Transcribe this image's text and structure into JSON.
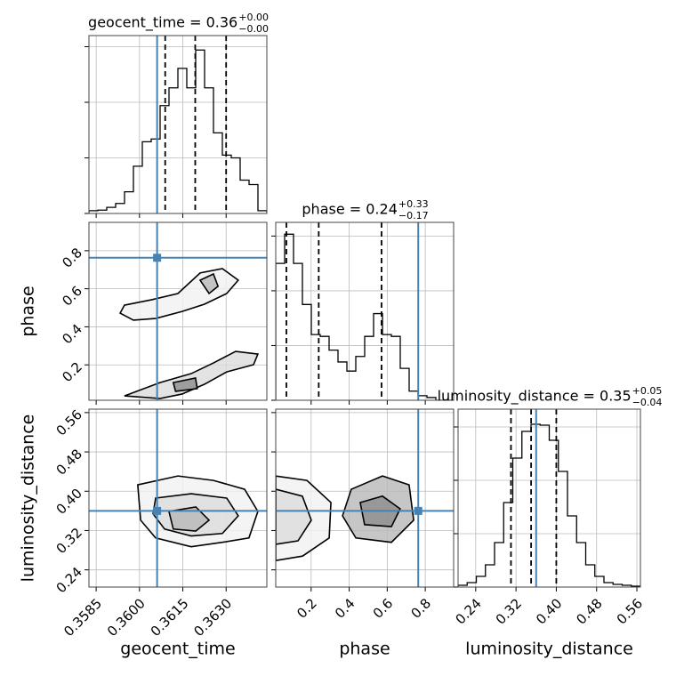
{
  "chart_data": {
    "type": "corner",
    "truth_color": "#4682b4",
    "line_color": "#000000",
    "grid": true,
    "parameters": [
      {
        "name": "geocent_time",
        "lim": [
          0.35825,
          0.36441
        ],
        "ticks": [
          0.3585,
          {
            "value": 0.36,
            "label": "0.3600"
          },
          0.3615,
          {
            "value": 0.363,
            "label": "0.3630"
          }
        ],
        "truth": 0.36061,
        "quantiles": [
          0.36089,
          0.36193,
          0.363
        ],
        "title": {
          "text": "geocent_time = 0.36",
          "plus": "+0.00",
          "minus": "−0.00"
        },
        "hist": {
          "bins": [
            0.35825,
            0.358558,
            0.358866,
            0.359174,
            0.359482,
            0.35979,
            0.360098,
            0.360406,
            0.360714,
            0.361022,
            0.36133,
            0.361638,
            0.361946,
            0.362254,
            0.362562,
            0.36287,
            0.363178,
            0.363486,
            0.363794,
            0.364102,
            0.36441
          ],
          "counts": [
            5,
            6,
            11,
            18,
            39,
            85,
            129,
            134,
            194,
            226,
            261,
            226,
            294,
            226,
            145,
            105,
            100,
            60,
            52,
            5
          ],
          "ylim": [
            0,
            320
          ],
          "yticks": [
            0,
            100,
            200,
            300
          ]
        }
      },
      {
        "name": "phase",
        "lim": [
          0.014,
          0.949
        ],
        "ticks": [
          0.2,
          0.4,
          0.6,
          0.8
        ],
        "truth": 0.763,
        "quantiles": [
          0.07,
          0.24,
          0.57
        ],
        "title": {
          "text": "phase = 0.24",
          "plus": "+0.33",
          "minus": "−0.17"
        },
        "hist": {
          "bins": [
            0.014,
            0.06075,
            0.1075,
            0.15425,
            0.201,
            0.24775,
            0.2945,
            0.34125,
            0.388,
            0.43475,
            0.4815,
            0.52825,
            0.575,
            0.62175,
            0.6685,
            0.71525,
            0.762,
            0.80875,
            0.8555,
            0.90225,
            0.949
          ],
          "counts": [
            150,
            182,
            150,
            105,
            72,
            70,
            55,
            42,
            32,
            48,
            70,
            95,
            72,
            70,
            35,
            10,
            5,
            3,
            0,
            0
          ],
          "ylim": [
            0,
            195
          ],
          "yticks": [
            0,
            60,
            120,
            180
          ]
        }
      },
      {
        "name": "luminosity_distance",
        "lim": [
          0.205,
          0.567
        ],
        "ticks": [
          0.24,
          0.32,
          {
            "value": 0.4,
            "label": "0.40"
          },
          0.48,
          0.56
        ],
        "truth": 0.36,
        "quantiles": [
          0.31,
          0.35,
          0.4
        ],
        "title": {
          "text": "luminosity_distance = 0.35",
          "plus": "+0.05",
          "minus": "−0.04"
        },
        "hist": {
          "bins": [
            0.205,
            0.2231,
            0.2412,
            0.2593,
            0.2774,
            0.2955,
            0.3136,
            0.3317,
            0.3498,
            0.3679,
            0.386,
            0.4041,
            0.4222,
            0.4403,
            0.4584,
            0.4765,
            0.4946,
            0.5127,
            0.5308,
            0.5489,
            0.567
          ],
          "counts": [
            2,
            5,
            12,
            25,
            50,
            95,
            145,
            175,
            183,
            182,
            165,
            130,
            80,
            50,
            25,
            12,
            5,
            3,
            2,
            1
          ],
          "ylim": [
            0,
            200
          ],
          "yticks": [
            0,
            60,
            120,
            180
          ]
        }
      }
    ],
    "panels_2d": [
      {
        "contours": [
          {
            "x": [
              0.35948,
              0.36041,
              0.36133,
              0.3621,
              0.36287,
              0.36342,
              0.36302,
              0.36225,
              0.36148,
              0.36056,
              0.35979,
              0.35933
            ],
            "y": [
              0.514,
              0.542,
              0.575,
              0.683,
              0.706,
              0.645,
              0.575,
              0.519,
              0.481,
              0.444,
              0.435,
              0.472
            ]
          },
          {
            "x": [
              0.35948,
              0.36071,
              0.36179,
              0.36256,
              0.36333,
              0.3641,
              0.36395,
              0.36302,
              0.36225,
              0.36148,
              0.36071
            ],
            "y": [
              0.037,
              0.107,
              0.154,
              0.21,
              0.271,
              0.257,
              0.201,
              0.163,
              0.098,
              0.047,
              0.023
            ]
          },
          {
            "x": [
              0.3621,
              0.36256,
              0.36272,
              0.36241
            ],
            "y": [
              0.645,
              0.678,
              0.613,
              0.575
            ]
          },
          {
            "x": [
              0.36117,
              0.36194,
              0.362,
              0.36125
            ],
            "y": [
              0.107,
              0.131,
              0.075,
              0.061
            ]
          }
        ]
      },
      {
        "contours": [
          {
            "x": [
              0.35994,
              0.36133,
              0.36256,
              0.36364,
              0.3641,
              0.36379,
              0.36287,
              0.36179,
              0.36056,
              0.36004
            ],
            "y": [
              0.413,
              0.431,
              0.422,
              0.404,
              0.359,
              0.305,
              0.296,
              0.287,
              0.305,
              0.341
            ]
          },
          {
            "x": [
              0.36056,
              0.36179,
              0.36302,
              0.36342,
              0.36287,
              0.36179,
              0.36087,
              0.36047
            ],
            "y": [
              0.386,
              0.395,
              0.386,
              0.35,
              0.314,
              0.309,
              0.323,
              0.354
            ]
          },
          {
            "x": [
              0.36102,
              0.36195,
              0.36241,
              0.36195,
              0.36117
            ],
            "y": [
              0.359,
              0.368,
              0.341,
              0.319,
              0.323
            ]
          }
        ]
      },
      {
        "contours": [
          {
            "x": [
              0.014,
              0.178,
              0.304,
              0.295,
              0.155,
              0.014
            ],
            "y": [
              0.431,
              0.422,
              0.377,
              0.305,
              0.268,
              0.259
            ]
          },
          {
            "x": [
              0.014,
              0.154,
              0.201,
              0.131,
              0.014
            ],
            "y": [
              0.404,
              0.39,
              0.341,
              0.299,
              0.292
            ]
          },
          {
            "x": [
              0.411,
              0.575,
              0.715,
              0.739,
              0.622,
              0.435,
              0.365
            ],
            "y": [
              0.404,
              0.431,
              0.413,
              0.341,
              0.296,
              0.305,
              0.35
            ]
          },
          {
            "x": [
              0.458,
              0.575,
              0.668,
              0.622,
              0.481
            ],
            "y": [
              0.377,
              0.39,
              0.364,
              0.328,
              0.332
            ]
          }
        ]
      }
    ]
  }
}
